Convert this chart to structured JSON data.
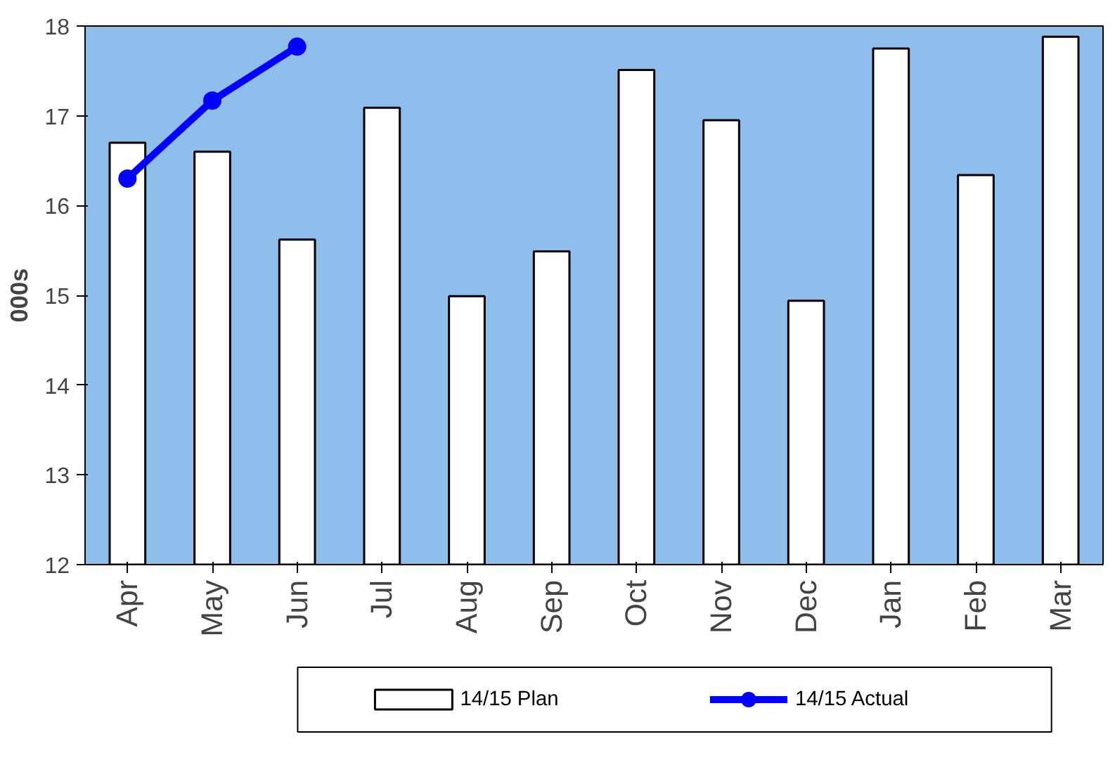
{
  "chart_data": {
    "type": "bar",
    "ylabel": "000s",
    "categories": [
      "Apr",
      "May",
      "Jun",
      "Jul",
      "Aug",
      "Sep",
      "Oct",
      "Nov",
      "Dec",
      "Jan",
      "Feb",
      "Mar"
    ],
    "series": [
      {
        "name": "14/15 Plan",
        "color": "#ffffff",
        "values": [
          16.7,
          16.6,
          15.62,
          17.09,
          14.99,
          15.49,
          17.51,
          16.95,
          14.94,
          17.75,
          16.34,
          17.88
        ]
      },
      {
        "name": "14/15 Actual",
        "type": "line",
        "color": "#0000ff",
        "values": [
          16.3,
          17.17,
          17.77,
          null,
          null,
          null,
          null,
          null,
          null,
          null,
          null,
          null
        ]
      }
    ],
    "ylim": [
      12,
      18
    ],
    "yticks": [
      12,
      13,
      14,
      15,
      16,
      17,
      18
    ],
    "grid": false,
    "legend": "bottom",
    "marker": "circle",
    "line_style": "solid"
  }
}
